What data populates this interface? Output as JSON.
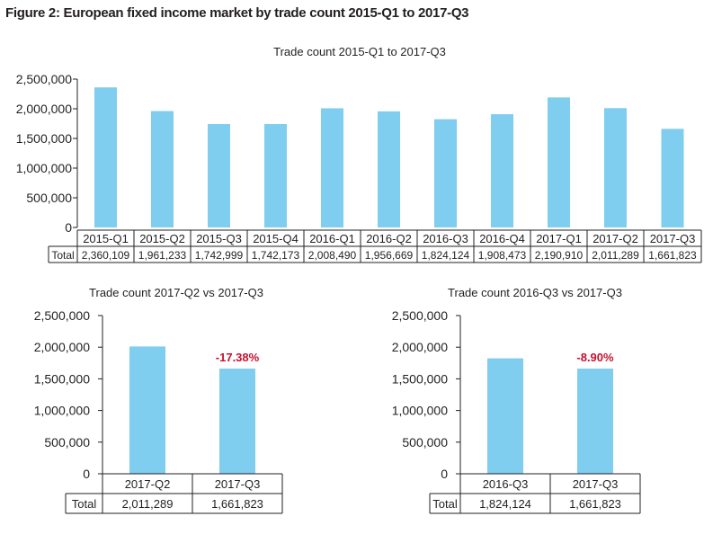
{
  "figure_title": "Figure 2: European fixed income market by trade count 2015-Q1 to 2017-Q3",
  "colors": {
    "bar": "#7fcdef",
    "change": "#c8102e",
    "axis": "#231f20"
  },
  "chart_data": [
    {
      "type": "bar",
      "title": "Trade count 2015-Q1 to 2017-Q3",
      "table_row_label": "Total",
      "categories": [
        "2015-Q1",
        "2015-Q2",
        "2015-Q3",
        "2015-Q4",
        "2016-Q1",
        "2016-Q2",
        "2016-Q3",
        "2016-Q4",
        "2017-Q1",
        "2017-Q2",
        "2017-Q3"
      ],
      "values": [
        2360109,
        1961233,
        1742999,
        1742173,
        2008490,
        1956669,
        1824124,
        1908473,
        2190910,
        2011289,
        1661823
      ],
      "value_labels": [
        "2,360,109",
        "1,961,233",
        "1,742,999",
        "1,742,173",
        "2,008,490",
        "1,956,669",
        "1,824,124",
        "1,908,473",
        "2,190,910",
        "2,011,289",
        "1,661,823"
      ],
      "ylim": [
        0,
        2500000
      ],
      "yticks": [
        0,
        500000,
        1000000,
        1500000,
        2000000,
        2500000
      ],
      "ytick_labels": [
        "0",
        "500,000",
        "1,000,000",
        "1,500,000",
        "2,000,000",
        "2,500,000"
      ],
      "grid": false
    },
    {
      "type": "bar",
      "title": "Trade count 2017-Q2 vs 2017-Q3",
      "table_row_label": "Total",
      "categories": [
        "2017-Q2",
        "2017-Q3"
      ],
      "values": [
        2011289,
        1661823
      ],
      "value_labels": [
        "2,011,289",
        "1,661,823"
      ],
      "annotation": "-17.38%",
      "ylim": [
        0,
        2500000
      ],
      "yticks": [
        0,
        500000,
        1000000,
        1500000,
        2000000,
        2500000
      ],
      "ytick_labels": [
        "0",
        "500,000",
        "1,000,000",
        "1,500,000",
        "2,000,000",
        "2,500,000"
      ],
      "grid": false
    },
    {
      "type": "bar",
      "title": "Trade count 2016-Q3 vs 2017-Q3",
      "table_row_label": "Total",
      "categories": [
        "2016-Q3",
        "2017-Q3"
      ],
      "values": [
        1824124,
        1661823
      ],
      "value_labels": [
        "1,824,124",
        "1,661,823"
      ],
      "annotation": "-8.90%",
      "ylim": [
        0,
        2500000
      ],
      "yticks": [
        0,
        500000,
        1000000,
        1500000,
        2000000,
        2500000
      ],
      "ytick_labels": [
        "0",
        "500,000",
        "1,000,000",
        "1,500,000",
        "2,000,000",
        "2,500,000"
      ],
      "grid": false
    }
  ]
}
